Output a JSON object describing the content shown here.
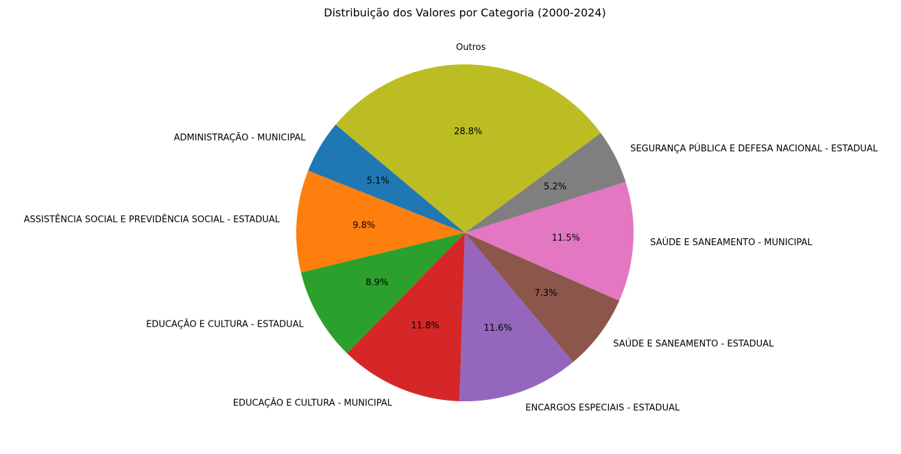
{
  "chart_data": {
    "type": "pie",
    "title": "Distribuição dos Valores por Categoria (2000-2024)",
    "start_angle_deg": 140,
    "direction": "counterclockwise",
    "slices": [
      {
        "label": "ADMINISTRAÇÃO - MUNICIPAL",
        "value": 5.1,
        "pct_label": "5.1%",
        "color": "#1f77b4"
      },
      {
        "label": "ASSISTÊNCIA SOCIAL E PREVIDÊNCIA SOCIAL - ESTADUAL",
        "value": 9.8,
        "pct_label": "9.8%",
        "color": "#ff7f0e"
      },
      {
        "label": "EDUCAÇÃO E CULTURA - ESTADUAL",
        "value": 8.9,
        "pct_label": "8.9%",
        "color": "#2ca02c"
      },
      {
        "label": "EDUCAÇÃO E CULTURA - MUNICIPAL",
        "value": 11.8,
        "pct_label": "11.8%",
        "color": "#d62728"
      },
      {
        "label": "ENCARGOS ESPECIAIS - ESTADUAL",
        "value": 11.6,
        "pct_label": "11.6%",
        "color": "#9467bd"
      },
      {
        "label": "SAÚDE E SANEAMENTO - ESTADUAL",
        "value": 7.3,
        "pct_label": "7.3%",
        "color": "#8c564b"
      },
      {
        "label": "SAÚDE E SANEAMENTO - MUNICIPAL",
        "value": 11.5,
        "pct_label": "11.5%",
        "color": "#e377c2"
      },
      {
        "label": "SEGURANÇA PÚBLICA E DEFESA NACIONAL - ESTADUAL",
        "value": 5.2,
        "pct_label": "5.2%",
        "color": "#7f7f7f"
      },
      {
        "label": "Outros",
        "value": 28.8,
        "pct_label": "28.8%",
        "color": "#bcbd22"
      }
    ]
  }
}
